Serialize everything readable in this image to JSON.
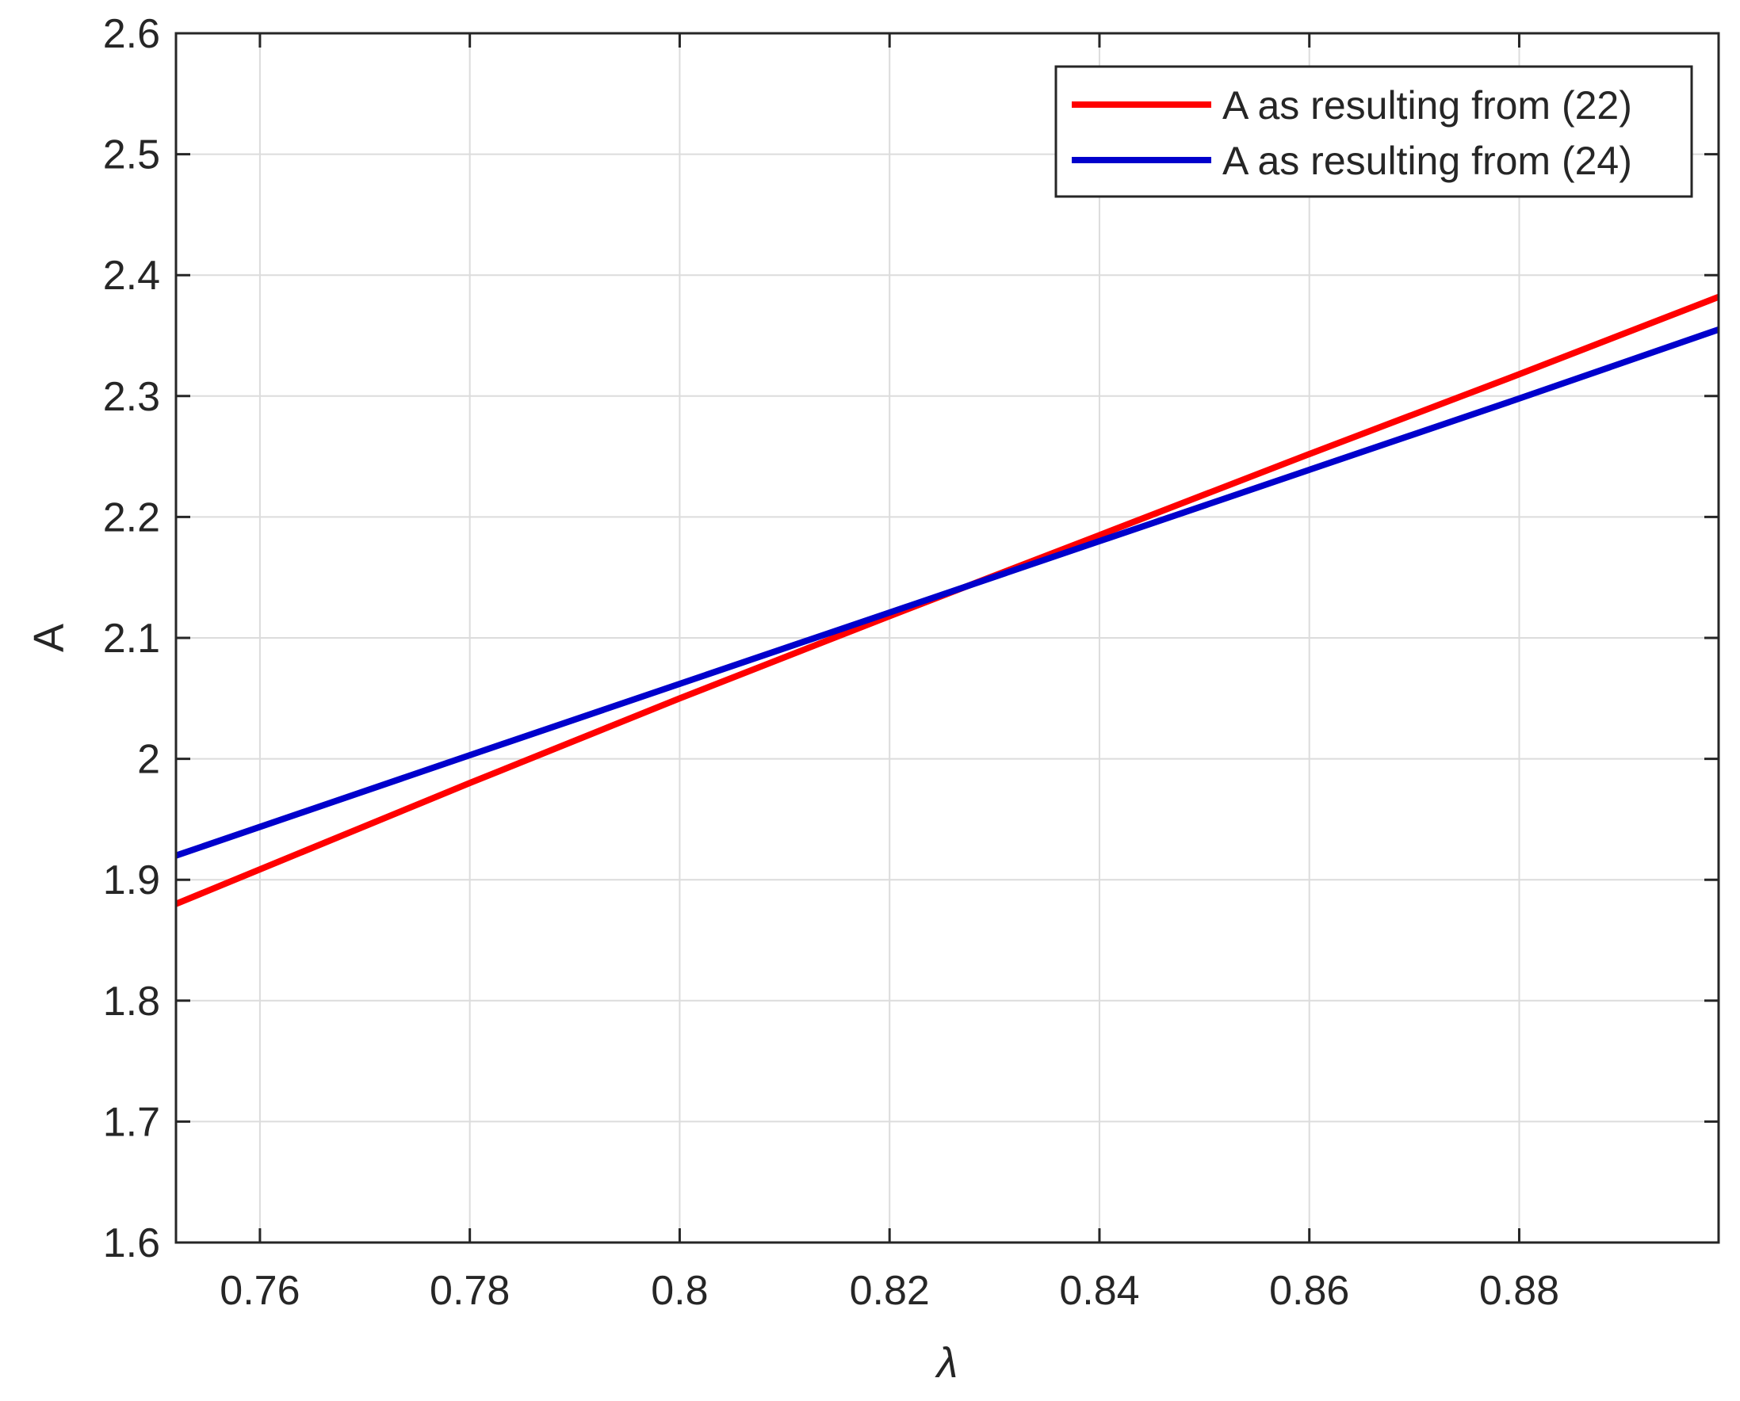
{
  "chart_data": {
    "type": "line",
    "title": "",
    "xlabel": "λ",
    "ylabel": "A",
    "xlim": [
      0.752,
      0.899
    ],
    "ylim": [
      1.6,
      2.6
    ],
    "xticks": [
      0.76,
      0.78,
      0.8,
      0.82,
      0.84,
      0.86,
      0.88
    ],
    "xtick_labels": [
      "0.76",
      "0.78",
      "0.8",
      "0.82",
      "0.84",
      "0.86",
      "0.88"
    ],
    "yticks": [
      1.6,
      1.7,
      1.8,
      1.9,
      2.0,
      2.1,
      2.2,
      2.3,
      2.4,
      2.5,
      2.6
    ],
    "ytick_labels": [
      "1.6",
      "1.7",
      "1.8",
      "1.9",
      "2",
      "2.1",
      "2.2",
      "2.3",
      "2.4",
      "2.5",
      "2.6"
    ],
    "grid": true,
    "legend_position": "top-right",
    "series": [
      {
        "name": "A as resulting from (22)",
        "color": "#ff0000",
        "x": [
          0.752,
          0.78,
          0.8,
          0.82,
          0.84,
          0.86,
          0.88,
          0.899
        ],
        "y": [
          1.88,
          1.98,
          2.05,
          2.118,
          2.185,
          2.252,
          2.318,
          2.382
        ]
      },
      {
        "name": "A as resulting from (24)",
        "color": "#0000cc",
        "x": [
          0.752,
          0.78,
          0.8,
          0.82,
          0.84,
          0.86,
          0.88,
          0.899
        ],
        "y": [
          1.92,
          2.003,
          2.062,
          2.121,
          2.18,
          2.239,
          2.298,
          2.355
        ]
      }
    ]
  }
}
